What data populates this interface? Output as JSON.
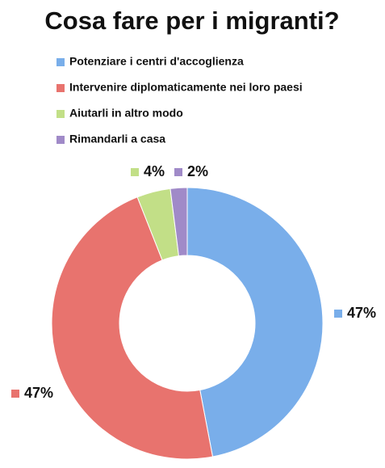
{
  "chart_data": {
    "type": "donut",
    "title": "Cosa fare per i migranti?",
    "categories": [
      "Potenziare i centri d'accoglienza",
      "Intervenire diplomaticamente nei loro paesi",
      "Aiutarli in altro modo",
      "Rimandarli a casa"
    ],
    "values": [
      47,
      47,
      4,
      2
    ],
    "value_labels": [
      "47%",
      "47%",
      "4%",
      "2%"
    ],
    "colors": [
      "#79aeea",
      "#e8736e",
      "#c2df87",
      "#a08ac8"
    ]
  }
}
